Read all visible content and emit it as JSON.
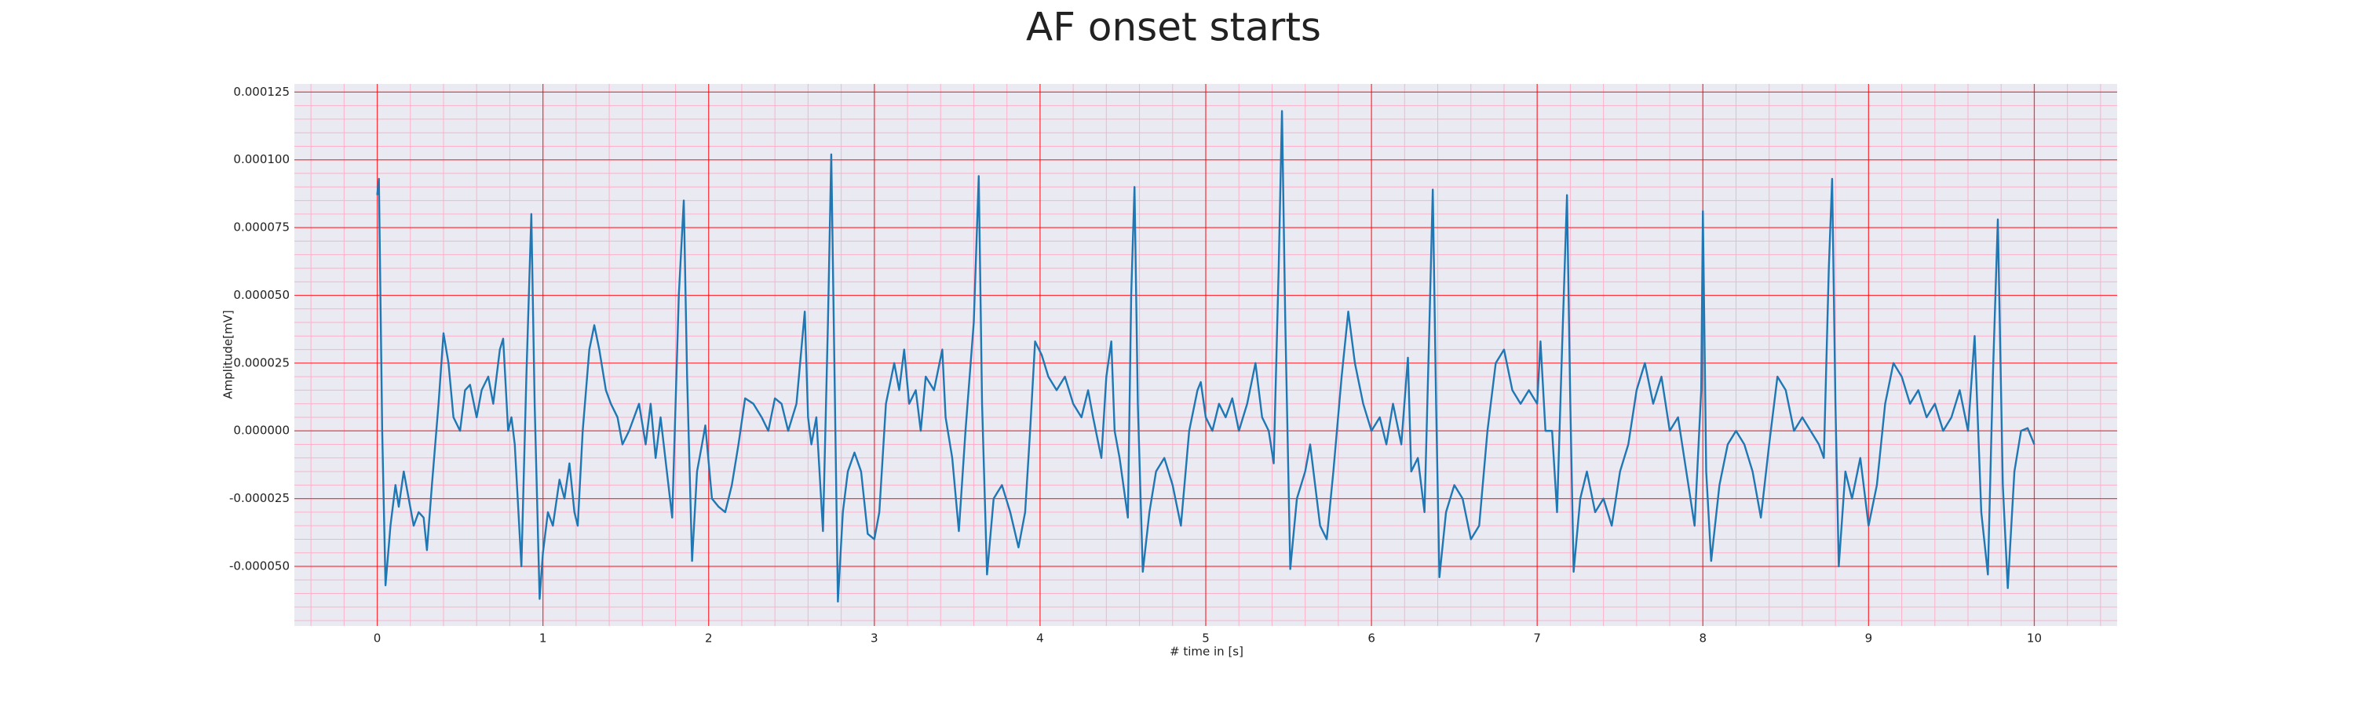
{
  "chart_data": {
    "type": "line",
    "title": "AF onset starts",
    "xlabel": "# time in [s]",
    "ylabel": "Amplitude[mV]",
    "x": [
      0.0,
      0.01,
      0.03,
      0.05,
      0.08,
      0.11,
      0.13,
      0.16,
      0.19,
      0.22,
      0.25,
      0.28,
      0.3,
      0.33,
      0.37,
      0.4,
      0.43,
      0.46,
      0.5,
      0.53,
      0.56,
      0.6,
      0.63,
      0.67,
      0.7,
      0.74,
      0.76,
      0.79,
      0.81,
      0.83,
      0.87,
      0.9,
      0.93,
      0.95,
      0.98,
      1.0,
      1.03,
      1.06,
      1.1,
      1.13,
      1.16,
      1.19,
      1.21,
      1.24,
      1.28,
      1.31,
      1.34,
      1.38,
      1.41,
      1.45,
      1.48,
      1.52,
      1.55,
      1.58,
      1.62,
      1.65,
      1.68,
      1.71,
      1.78,
      1.82,
      1.85,
      1.87,
      1.9,
      1.93,
      1.96,
      1.98,
      2.02,
      2.06,
      2.1,
      2.14,
      2.18,
      2.22,
      2.27,
      2.32,
      2.36,
      2.4,
      2.44,
      2.48,
      2.53,
      2.58,
      2.6,
      2.62,
      2.65,
      2.69,
      2.72,
      2.74,
      2.76,
      2.78,
      2.81,
      2.84,
      2.88,
      2.92,
      2.96,
      3.0,
      3.03,
      3.07,
      3.12,
      3.15,
      3.18,
      3.21,
      3.25,
      3.28,
      3.31,
      3.36,
      3.41,
      3.43,
      3.47,
      3.51,
      3.55,
      3.6,
      3.63,
      3.65,
      3.68,
      3.72,
      3.77,
      3.82,
      3.87,
      3.91,
      3.94,
      3.97,
      4.01,
      4.05,
      4.1,
      4.15,
      4.2,
      4.25,
      4.29,
      4.32,
      4.37,
      4.4,
      4.43,
      4.45,
      4.48,
      4.53,
      4.55,
      4.57,
      4.59,
      4.62,
      4.66,
      4.7,
      4.75,
      4.8,
      4.85,
      4.9,
      4.95,
      4.97,
      5.0,
      5.04,
      5.08,
      5.12,
      5.16,
      5.2,
      5.25,
      5.3,
      5.34,
      5.38,
      5.41,
      5.44,
      5.46,
      5.48,
      5.51,
      5.55,
      5.6,
      5.63,
      5.66,
      5.69,
      5.73,
      5.77,
      5.82,
      5.86,
      5.9,
      5.95,
      6.0,
      6.05,
      6.09,
      6.13,
      6.18,
      6.22,
      6.24,
      6.28,
      6.32,
      6.35,
      6.37,
      6.39,
      6.41,
      6.45,
      6.5,
      6.55,
      6.6,
      6.65,
      6.7,
      6.75,
      6.8,
      6.85,
      6.9,
      6.95,
      7.0,
      7.02,
      7.05,
      7.09,
      7.12,
      7.15,
      7.18,
      7.2,
      7.22,
      7.26,
      7.3,
      7.35,
      7.4,
      7.45,
      7.5,
      7.55,
      7.6,
      7.65,
      7.7,
      7.75,
      7.8,
      7.85,
      7.9,
      7.95,
      7.99,
      8.0,
      8.02,
      8.05,
      8.1,
      8.15,
      8.2,
      8.25,
      8.3,
      8.35,
      8.4,
      8.45,
      8.5,
      8.55,
      8.6,
      8.65,
      8.7,
      8.73,
      8.76,
      8.78,
      8.8,
      8.82,
      8.86,
      8.9,
      8.95,
      9.0,
      9.05,
      9.1,
      9.15,
      9.2,
      9.25,
      9.3,
      9.35,
      9.4,
      9.45,
      9.5,
      9.55,
      9.6,
      9.64,
      9.68,
      9.72,
      9.75,
      9.78,
      9.81,
      9.84,
      9.88,
      9.92,
      9.96,
      10.0
    ],
    "values": [
      8.7e-05,
      9.3e-05,
      0,
      -5.7e-05,
      -3.5e-05,
      -2e-05,
      -2.8e-05,
      -1.5e-05,
      -2.5e-05,
      -3.5e-05,
      -3e-05,
      -3.2e-05,
      -4.4e-05,
      -2e-05,
      1e-05,
      3.6e-05,
      2.5e-05,
      5e-06,
      0,
      1.5e-05,
      1.7e-05,
      5e-06,
      1.5e-05,
      2e-05,
      1e-05,
      3e-05,
      3.4e-05,
      0,
      5e-06,
      -5e-06,
      -5e-05,
      2e-05,
      8e-05,
      1e-05,
      -6.2e-05,
      -4.5e-05,
      -3e-05,
      -3.5e-05,
      -1.8e-05,
      -2.5e-05,
      -1.2e-05,
      -3e-05,
      -3.5e-05,
      0,
      3e-05,
      3.9e-05,
      3e-05,
      1.5e-05,
      1e-05,
      5e-06,
      -5e-06,
      0,
      5e-06,
      1e-05,
      -5e-06,
      1e-05,
      -1e-05,
      5e-06,
      -3.2e-05,
      5e-05,
      8.5e-05,
      2e-05,
      -4.8e-05,
      -1.5e-05,
      -5e-06,
      2e-06,
      -2.5e-05,
      -2.8e-05,
      -3e-05,
      -2e-05,
      -5e-06,
      1.2e-05,
      1e-05,
      5e-06,
      0,
      1.2e-05,
      1e-05,
      0,
      1e-05,
      4.4e-05,
      5e-06,
      -5e-06,
      5e-06,
      -3.7e-05,
      4e-05,
      0.000102,
      2e-05,
      -6.3e-05,
      -3e-05,
      -1.5e-05,
      -8e-06,
      -1.5e-05,
      -3.8e-05,
      -4e-05,
      -3e-05,
      1e-05,
      2.5e-05,
      1.5e-05,
      3e-05,
      1e-05,
      1.5e-05,
      0,
      2e-05,
      1.5e-05,
      3e-05,
      5e-06,
      -1e-05,
      -3.7e-05,
      0,
      4e-05,
      9.4e-05,
      1e-05,
      -5.3e-05,
      -2.5e-05,
      -2e-05,
      -3e-05,
      -4.3e-05,
      -3e-05,
      0,
      3.3e-05,
      2.8e-05,
      2e-05,
      1.5e-05,
      2e-05,
      1e-05,
      5e-06,
      1.5e-05,
      5e-06,
      -1e-05,
      2e-05,
      3.3e-05,
      0,
      -1e-05,
      -3.2e-05,
      5e-05,
      9e-05,
      1e-05,
      -5.2e-05,
      -3e-05,
      -1.5e-05,
      -1e-05,
      -2e-05,
      -3.5e-05,
      0,
      1.5e-05,
      1.8e-05,
      5e-06,
      0,
      1e-05,
      5e-06,
      1.2e-05,
      0,
      1e-05,
      2.5e-05,
      5e-06,
      0,
      -1.2e-05,
      6e-05,
      0.000118,
      4e-05,
      -5.1e-05,
      -2.5e-05,
      -1.5e-05,
      -5e-06,
      -2e-05,
      -3.5e-05,
      -4e-05,
      -1.5e-05,
      2e-05,
      4.4e-05,
      2.5e-05,
      1e-05,
      0,
      5e-06,
      -5e-06,
      1e-05,
      -5e-06,
      2.7e-05,
      -1.5e-05,
      -1e-05,
      -3e-05,
      4e-05,
      8.9e-05,
      1e-05,
      -5.4e-05,
      -3e-05,
      -2e-05,
      -2.5e-05,
      -4e-05,
      -3.5e-05,
      0,
      2.5e-05,
      3e-05,
      1.5e-05,
      1e-05,
      1.5e-05,
      1e-05,
      3.3e-05,
      0,
      0,
      -3e-05,
      3e-05,
      8.7e-05,
      1e-05,
      -5.2e-05,
      -2.5e-05,
      -1.5e-05,
      -3e-05,
      -2.5e-05,
      -3.5e-05,
      -1.5e-05,
      -5e-06,
      1.5e-05,
      2.5e-05,
      1e-05,
      2e-05,
      0,
      5e-06,
      -1.5e-05,
      -3.5e-05,
      1.5e-05,
      8.1e-05,
      -1.5e-05,
      -4.8e-05,
      -2e-05,
      -5e-06,
      0,
      -5e-06,
      -1.5e-05,
      -3.2e-05,
      -5e-06,
      2e-05,
      1.5e-05,
      0,
      5e-06,
      0,
      -5e-06,
      -1e-05,
      6e-05,
      9.3e-05,
      1e-05,
      -5e-05,
      -1.5e-05,
      -2.5e-05,
      -1e-05,
      -3.5e-05,
      -2e-05,
      1e-05,
      2.5e-05,
      2e-05,
      1e-05,
      1.5e-05,
      5e-06,
      1e-05,
      0,
      5e-06,
      1.5e-05,
      0,
      3.5e-05,
      -3e-05,
      -5.3e-05,
      2e-05,
      7.8e-05,
      -2e-05,
      -5.8e-05,
      -1.5e-05,
      0,
      1e-06,
      -5e-06
    ],
    "color": "#1f77b4",
    "xlim": [
      -0.5,
      10.5
    ],
    "xticks": [
      0,
      1,
      2,
      3,
      4,
      5,
      6,
      7,
      8,
      9,
      10
    ],
    "ylim": [
      -7.2e-05,
      0.000128
    ],
    "yticks": [
      {
        "value": -5e-05,
        "label": "-0.000050"
      },
      {
        "value": -2.5e-05,
        "label": "-0.000025"
      },
      {
        "value": 0,
        "label": "0.000000"
      },
      {
        "value": 2.5e-05,
        "label": "0.000025"
      },
      {
        "value": 5e-05,
        "label": "0.000050"
      },
      {
        "value": 7.5e-05,
        "label": "0.000075"
      },
      {
        "value": 0.0001,
        "label": "0.000100"
      },
      {
        "value": 0.000125,
        "label": "0.000125"
      }
    ],
    "grid": true,
    "grid_color": "#ff0000",
    "minor_grid_color": "#ffb0c8",
    "minor_step": {
      "x": 0.2,
      "y": 5e-06
    }
  }
}
